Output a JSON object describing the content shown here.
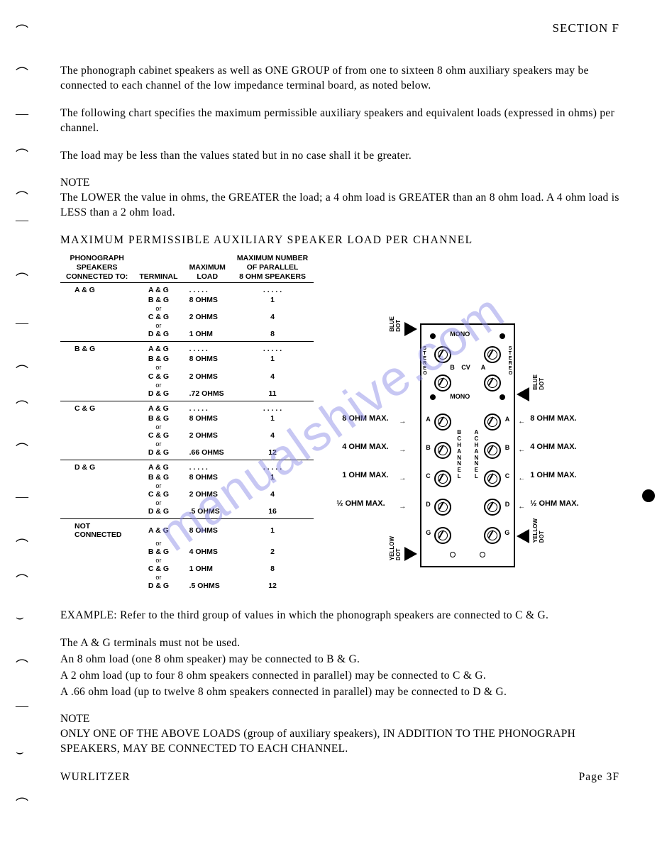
{
  "section_header": "SECTION F",
  "para1": "The phonograph cabinet speakers as well as ONE GROUP of from one to sixteen 8 ohm auxiliary speakers may be connected to each channel of the low impedance terminal board, as noted below.",
  "para2": "The following chart specifies the maximum permissible auxiliary speakers and equivalent loads (expressed in ohms) per channel.",
  "para3": "The load may be less than the values stated but in no case shall it be greater.",
  "note1_label": "NOTE",
  "note1_text": "The LOWER the value in ohms, the GREATER the load; a 4 ohm load is GREATER than an 8 ohm load. A 4 ohm load is LESS than a 2 ohm load.",
  "table_title": "MAXIMUM PERMISSIBLE AUXILIARY SPEAKER LOAD PER CHANNEL",
  "table": {
    "headers": {
      "col1": "PHONOGRAPH\nSPEAKERS\nCONNECTED TO:",
      "col2": "TERMINAL",
      "col3": "MAXIMUM\nLOAD",
      "col4": "MAXIMUM NUMBER\nOF PARALLEL\n8 OHM SPEAKERS"
    },
    "groups": [
      {
        "phono": "A & G",
        "rows": [
          {
            "term": "A & G",
            "load": ". . . . .",
            "num": ". . . . ."
          },
          {
            "term": "B & G",
            "load": "8 OHMS",
            "num": "1",
            "or_after": true
          },
          {
            "term": "C & G",
            "load": "2 OHMS",
            "num": "4",
            "or_after": true
          },
          {
            "term": "D & G",
            "load": "1 OHM",
            "num": "8"
          }
        ]
      },
      {
        "phono": "B & G",
        "rows": [
          {
            "term": "A & G",
            "load": ". . . . .",
            "num": ". . . . ."
          },
          {
            "term": "B & G",
            "load": "8 OHMS",
            "num": "1",
            "or_after": true
          },
          {
            "term": "C & G",
            "load": "2 OHMS",
            "num": "4",
            "or_after": true
          },
          {
            "term": "D & G",
            "load": ".72 OHMS",
            "num": "11"
          }
        ]
      },
      {
        "phono": "C & G",
        "rows": [
          {
            "term": "A & G",
            "load": ". . . . .",
            "num": ". . . . ."
          },
          {
            "term": "B & G",
            "load": "8 OHMS",
            "num": "1",
            "or_after": true
          },
          {
            "term": "C & G",
            "load": "2 OHMS",
            "num": "4",
            "or_after": true
          },
          {
            "term": "D & G",
            "load": ".66 OHMS",
            "num": "12"
          }
        ]
      },
      {
        "phono": "D & G",
        "rows": [
          {
            "term": "A & G",
            "load": ". . . . .",
            "num": ". . . . ."
          },
          {
            "term": "B & G",
            "load": "8 OHMS",
            "num": "1",
            "or_after": true
          },
          {
            "term": "C & G",
            "load": "2 OHMS",
            "num": "4",
            "or_after": true
          },
          {
            "term": "D & G",
            "load": ".5 OHMS",
            "num": "16"
          }
        ]
      },
      {
        "phono": "NOT\nCONNECTED",
        "rows": [
          {
            "term": "A & G",
            "load": "8 OHMS",
            "num": "1",
            "or_after": true
          },
          {
            "term": "B & G",
            "load": "4 OHMS",
            "num": "2",
            "or_after": true
          },
          {
            "term": "C & G",
            "load": "1 OHM",
            "num": "8",
            "or_after": true
          },
          {
            "term": "D & G",
            "load": ".5 OHMS",
            "num": "12"
          }
        ]
      }
    ]
  },
  "diagram": {
    "labels": {
      "mono": "MONO",
      "stereo": "STEREO",
      "cv": "CV",
      "a": "A",
      "b": "B",
      "c": "C",
      "d": "D",
      "g": "G",
      "channel_b": "B\nC\nH\nA\nN\nN\nE\nL",
      "channel_a": "A\nC\nH\nA\nN\nN\nE\nL",
      "ohm8": "8 OHM MAX.",
      "ohm4": "4 OHM MAX.",
      "ohm1": "1 OHM MAX.",
      "ohmhalf": "½ OHM MAX.",
      "blue_dot": "BLUE DOT",
      "yellow_dot": "YELLOW DOT"
    }
  },
  "example_label": "EXAMPLE:",
  "example1": "Refer to the third group of values in which the phonograph speakers are connected to C & G.",
  "example2": "The A & G terminals must not be used.",
  "example3": "An 8 ohm load (one 8 ohm speaker) may be connected to B & G.",
  "example4": "A 2 ohm load (up to four 8 ohm speakers connected in parallel) may be connected to C & G.",
  "example5": "A .66 ohm load (up to twelve 8 ohm speakers connected in parallel) may be connected to D & G.",
  "note2_label": "NOTE",
  "note2_text": "ONLY ONE OF THE ABOVE LOADS (group of auxiliary speakers), IN ADDITION TO THE PHONOGRAPH SPEAKERS, MAY BE CONNECTED TO EACH CHANNEL.",
  "footer_left": "WURLITZER",
  "footer_right": "Page 3F",
  "watermark": "manualshive.com",
  "or_text": "or"
}
